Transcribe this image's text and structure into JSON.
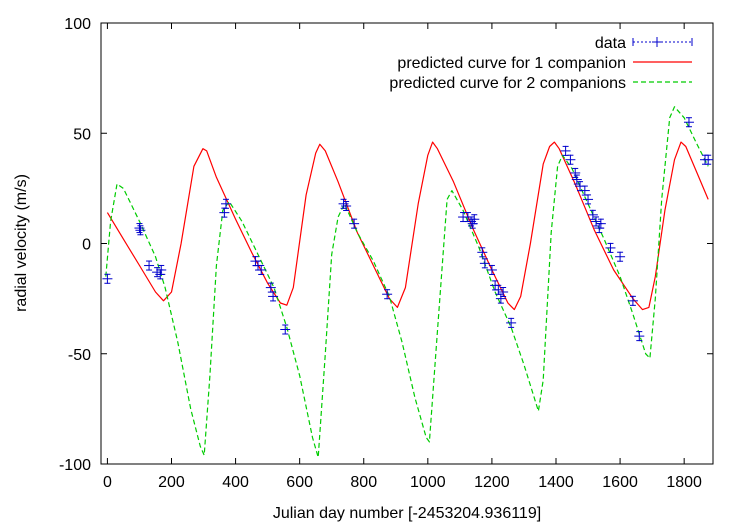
{
  "chart_data": {
    "type": "line",
    "title": "",
    "xlabel": "Julian day number [-2453204.936119]",
    "ylabel": "radial velocity (m/s)",
    "xlim": [
      -20,
      1890
    ],
    "ylim": [
      -100,
      100
    ],
    "xticks": [
      0,
      200,
      400,
      600,
      800,
      1000,
      1200,
      1400,
      1600,
      1800
    ],
    "yticks": [
      -100,
      -50,
      0,
      50,
      100
    ],
    "legend_position": "top-right",
    "grid": false,
    "series": [
      {
        "name": "data",
        "style": "points",
        "color": "#0000cc",
        "points": [
          [
            0,
            -16
          ],
          [
            100,
            7
          ],
          [
            103,
            6
          ],
          [
            130,
            -10
          ],
          [
            155,
            -13
          ],
          [
            165,
            -14
          ],
          [
            168,
            -12
          ],
          [
            365,
            14
          ],
          [
            370,
            18
          ],
          [
            462,
            -8
          ],
          [
            470,
            -10
          ],
          [
            480,
            -12
          ],
          [
            510,
            -20
          ],
          [
            517,
            -24
          ],
          [
            555,
            -39
          ],
          [
            737,
            18
          ],
          [
            745,
            17
          ],
          [
            770,
            9
          ],
          [
            873,
            -23
          ],
          [
            1110,
            12
          ],
          [
            1125,
            12
          ],
          [
            1135,
            10
          ],
          [
            1140,
            9
          ],
          [
            1145,
            11
          ],
          [
            1170,
            -4
          ],
          [
            1178,
            -9
          ],
          [
            1200,
            -12
          ],
          [
            1210,
            -19
          ],
          [
            1220,
            -21
          ],
          [
            1228,
            -25
          ],
          [
            1235,
            -22
          ],
          [
            1260,
            -36
          ],
          [
            1430,
            42
          ],
          [
            1445,
            38
          ],
          [
            1460,
            32
          ],
          [
            1465,
            29
          ],
          [
            1475,
            26
          ],
          [
            1490,
            24
          ],
          [
            1500,
            20
          ],
          [
            1515,
            13
          ],
          [
            1525,
            10
          ],
          [
            1535,
            7
          ],
          [
            1540,
            9
          ],
          [
            1570,
            -2
          ],
          [
            1600,
            -6
          ],
          [
            1640,
            -26
          ],
          [
            1660,
            -42
          ],
          [
            1815,
            55
          ],
          [
            1865,
            38
          ],
          [
            1875,
            38
          ]
        ]
      },
      {
        "name": "predicted curve for 1 companion",
        "style": "line",
        "color": "#ff0000",
        "points": [
          [
            0,
            14
          ],
          [
            50,
            2
          ],
          [
            100,
            -10
          ],
          [
            150,
            -22
          ],
          [
            175,
            -26
          ],
          [
            200,
            -22
          ],
          [
            230,
            0
          ],
          [
            270,
            35
          ],
          [
            298,
            43
          ],
          [
            310,
            42
          ],
          [
            340,
            30
          ],
          [
            400,
            11
          ],
          [
            450,
            -4
          ],
          [
            500,
            -18
          ],
          [
            540,
            -27
          ],
          [
            560,
            -28
          ],
          [
            580,
            -20
          ],
          [
            620,
            22
          ],
          [
            650,
            41
          ],
          [
            663,
            45
          ],
          [
            680,
            42
          ],
          [
            720,
            28
          ],
          [
            780,
            5
          ],
          [
            840,
            -13
          ],
          [
            880,
            -25
          ],
          [
            905,
            -29
          ],
          [
            930,
            -20
          ],
          [
            970,
            18
          ],
          [
            1000,
            40
          ],
          [
            1015,
            46
          ],
          [
            1030,
            43
          ],
          [
            1080,
            28
          ],
          [
            1140,
            7
          ],
          [
            1200,
            -12
          ],
          [
            1250,
            -27
          ],
          [
            1270,
            -30
          ],
          [
            1290,
            -24
          ],
          [
            1320,
            0
          ],
          [
            1360,
            36
          ],
          [
            1380,
            44
          ],
          [
            1395,
            46
          ],
          [
            1410,
            43
          ],
          [
            1460,
            27
          ],
          [
            1520,
            6
          ],
          [
            1580,
            -12
          ],
          [
            1640,
            -25
          ],
          [
            1670,
            -30
          ],
          [
            1690,
            -29
          ],
          [
            1710,
            -15
          ],
          [
            1740,
            15
          ],
          [
            1770,
            38
          ],
          [
            1790,
            46
          ],
          [
            1805,
            44
          ],
          [
            1840,
            32
          ],
          [
            1875,
            20
          ]
        ]
      },
      {
        "name": "predicted curve for 2 companions",
        "style": "dashed",
        "color": "#00cc00",
        "points": [
          [
            -5,
            -15
          ],
          [
            10,
            10
          ],
          [
            30,
            27
          ],
          [
            50,
            25
          ],
          [
            100,
            10
          ],
          [
            150,
            -6
          ],
          [
            180,
            -20
          ],
          [
            220,
            -45
          ],
          [
            260,
            -75
          ],
          [
            290,
            -92
          ],
          [
            302,
            -96
          ],
          [
            320,
            -60
          ],
          [
            340,
            -10
          ],
          [
            360,
            15
          ],
          [
            380,
            19
          ],
          [
            420,
            10
          ],
          [
            470,
            -5
          ],
          [
            520,
            -20
          ],
          [
            560,
            -38
          ],
          [
            600,
            -60
          ],
          [
            640,
            -88
          ],
          [
            658,
            -97
          ],
          [
            680,
            -50
          ],
          [
            700,
            -5
          ],
          [
            720,
            12
          ],
          [
            740,
            18
          ],
          [
            780,
            5
          ],
          [
            830,
            -8
          ],
          [
            880,
            -24
          ],
          [
            920,
            -45
          ],
          [
            960,
            -70
          ],
          [
            995,
            -88
          ],
          [
            1005,
            -90
          ],
          [
            1030,
            -40
          ],
          [
            1060,
            20
          ],
          [
            1075,
            24
          ],
          [
            1110,
            15
          ],
          [
            1160,
            -2
          ],
          [
            1210,
            -22
          ],
          [
            1260,
            -38
          ],
          [
            1300,
            -55
          ],
          [
            1345,
            -76
          ],
          [
            1360,
            -62
          ],
          [
            1385,
            5
          ],
          [
            1405,
            35
          ],
          [
            1420,
            40
          ],
          [
            1450,
            34
          ],
          [
            1500,
            18
          ],
          [
            1550,
            2
          ],
          [
            1600,
            -15
          ],
          [
            1640,
            -32
          ],
          [
            1680,
            -50
          ],
          [
            1693,
            -52
          ],
          [
            1710,
            -25
          ],
          [
            1730,
            20
          ],
          [
            1755,
            57
          ],
          [
            1770,
            62
          ],
          [
            1800,
            57
          ],
          [
            1840,
            45
          ],
          [
            1875,
            35
          ]
        ]
      }
    ]
  }
}
